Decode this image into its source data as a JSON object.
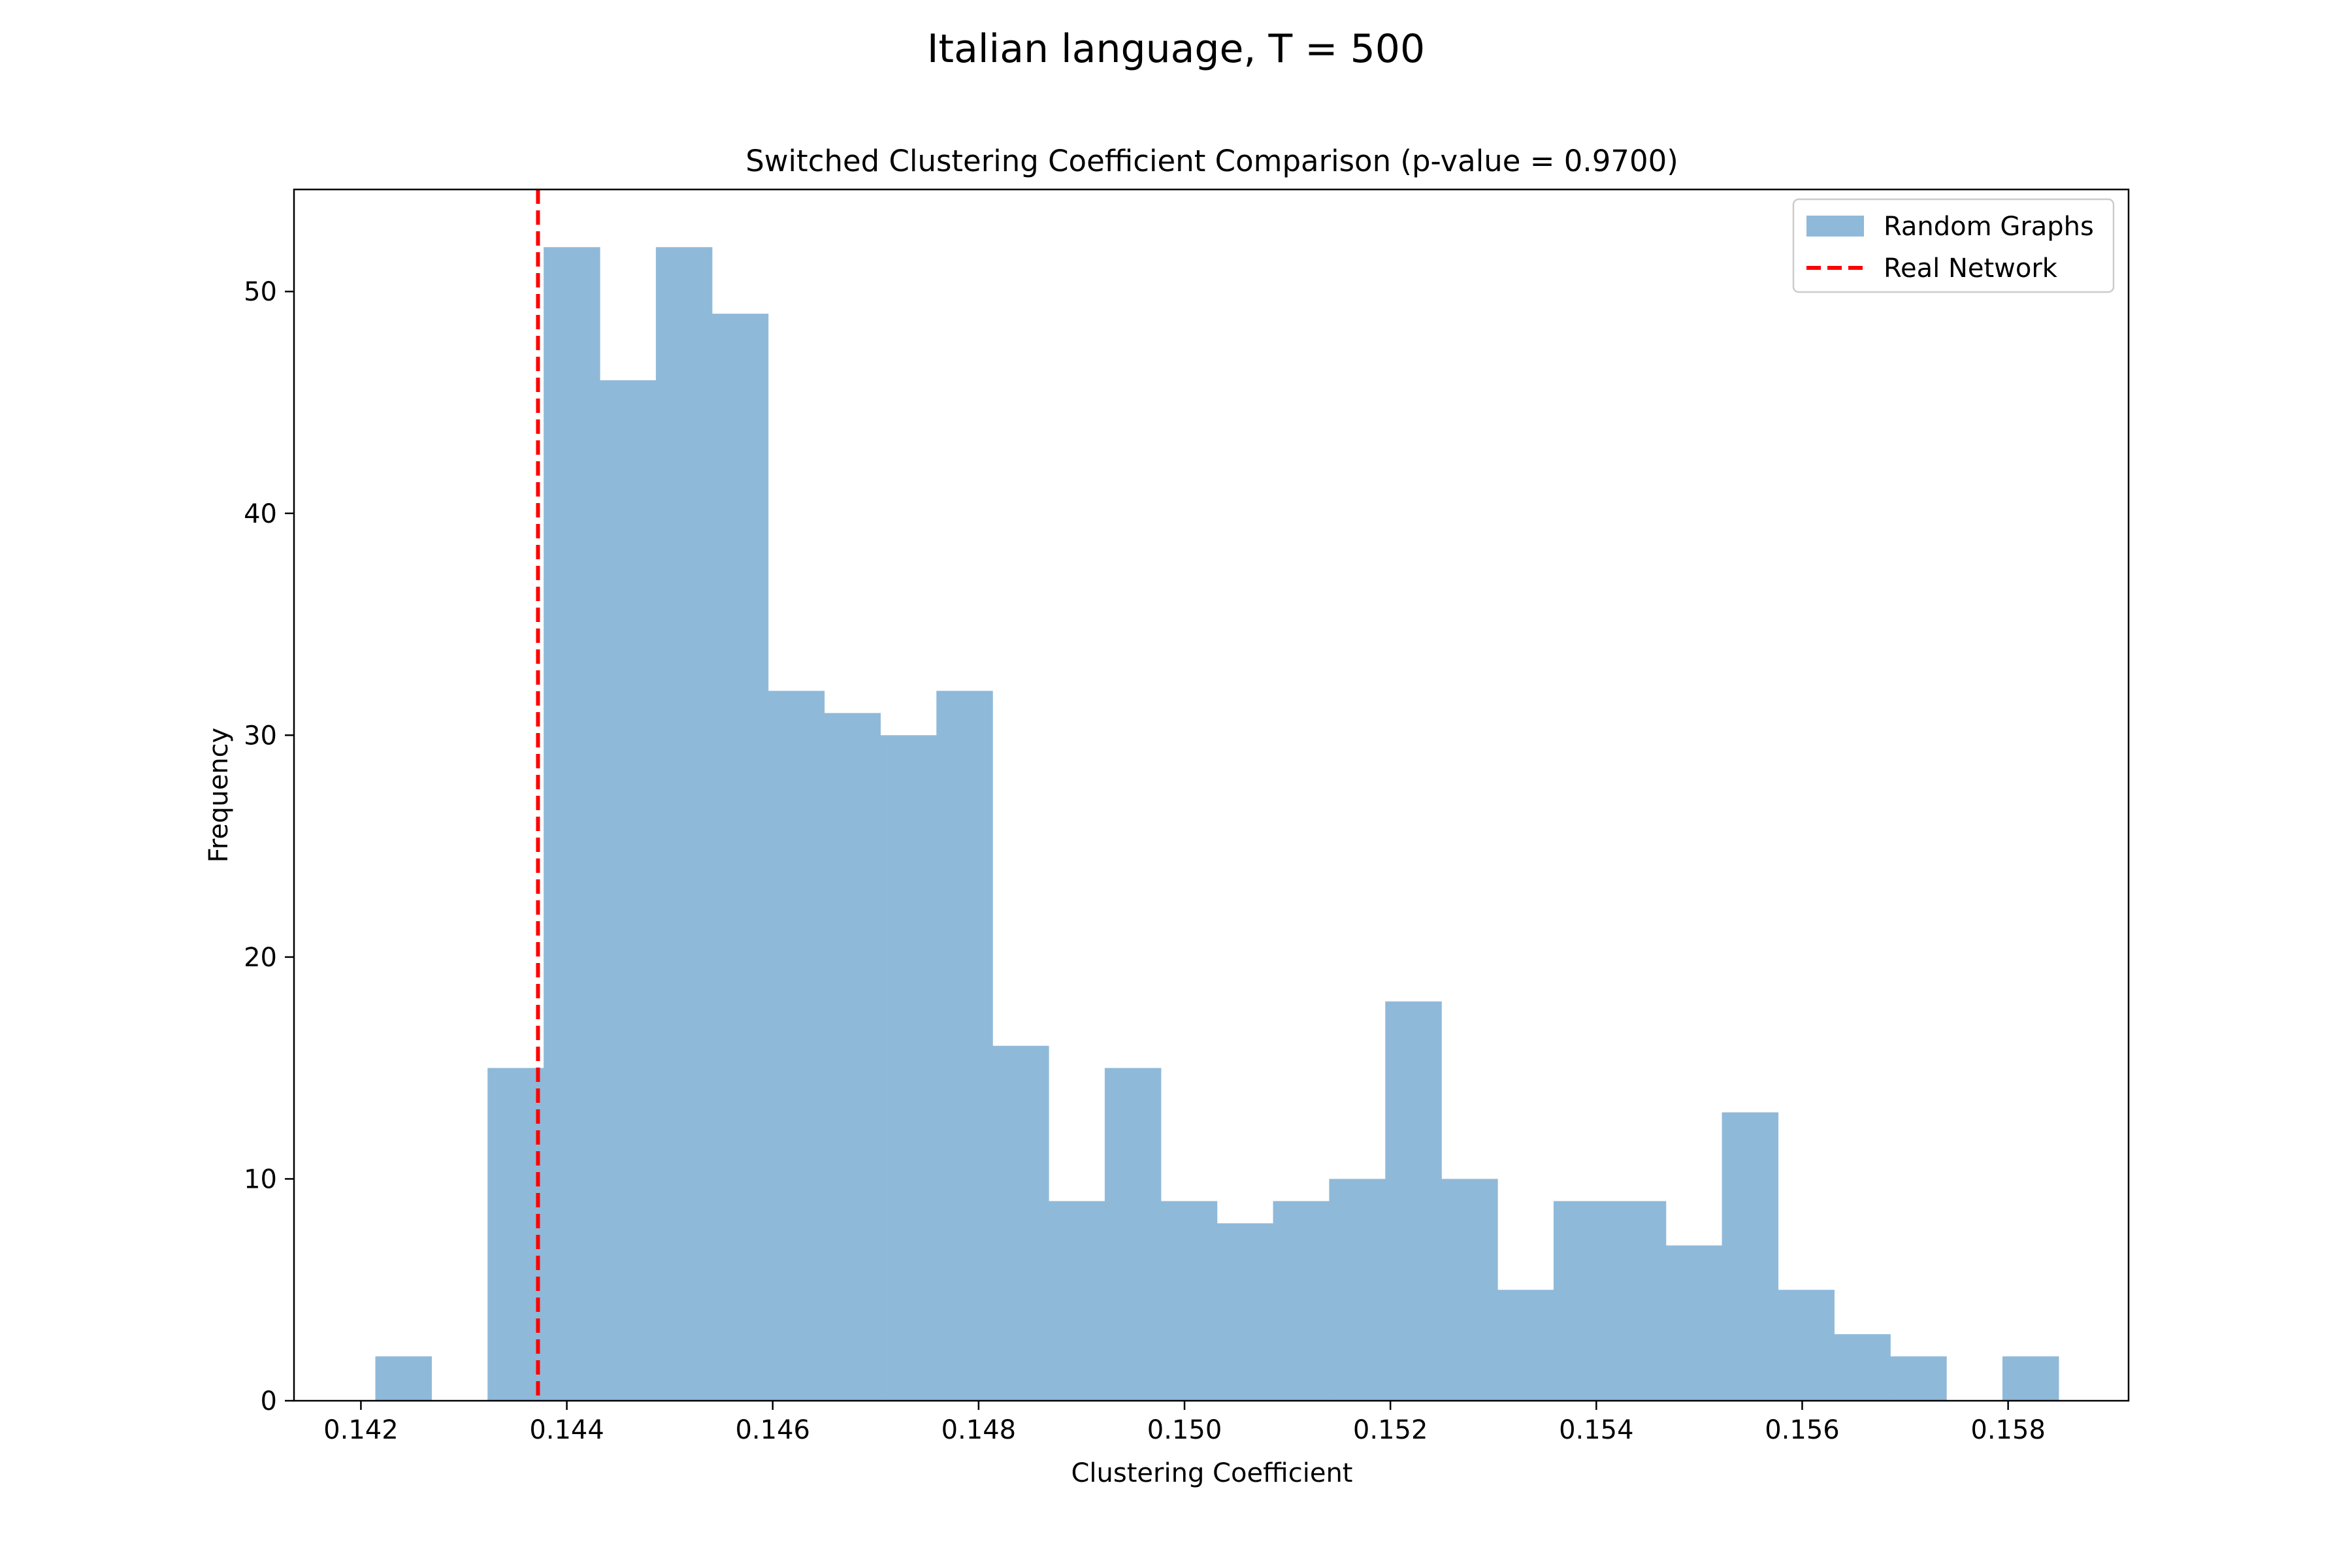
{
  "suptitle": "Italian language, T = 500",
  "chart_data": {
    "type": "bar",
    "title": "Switched Clustering Coefficient Comparison (p-value = 0.9700)",
    "xlabel": "Clustering Coefficient",
    "ylabel": "Frequency",
    "xlim": [
      0.14135,
      0.15917
    ],
    "ylim": [
      0,
      54.6
    ],
    "xticks": [
      0.142,
      0.144,
      0.146,
      0.148,
      0.15,
      0.152,
      0.154,
      0.156,
      0.158
    ],
    "xtick_labels": [
      "0.142",
      "0.144",
      "0.146",
      "0.148",
      "0.150",
      "0.152",
      "0.154",
      "0.156",
      "0.158"
    ],
    "yticks": [
      0,
      10,
      20,
      30,
      40,
      50
    ],
    "ytick_labels": [
      "0",
      "10",
      "20",
      "30",
      "40",
      "50"
    ],
    "bin_start": 0.14214,
    "bin_width": 0.000545,
    "series": [
      {
        "name": "Random Graphs",
        "color": "#8fb9d9",
        "values": [
          2,
          0,
          15,
          52,
          46,
          52,
          49,
          32,
          31,
          30,
          32,
          16,
          9,
          15,
          9,
          8,
          9,
          10,
          18,
          10,
          5,
          9,
          9,
          7,
          13,
          5,
          3,
          2,
          0,
          2
        ]
      }
    ],
    "reference_line": {
      "name": "Real Network",
      "x": 0.14372,
      "color": "#ff0000",
      "style": "dashed"
    },
    "legend": {
      "position": "top-right",
      "entries": [
        "Random Graphs",
        "Real Network"
      ]
    },
    "grid": false
  }
}
